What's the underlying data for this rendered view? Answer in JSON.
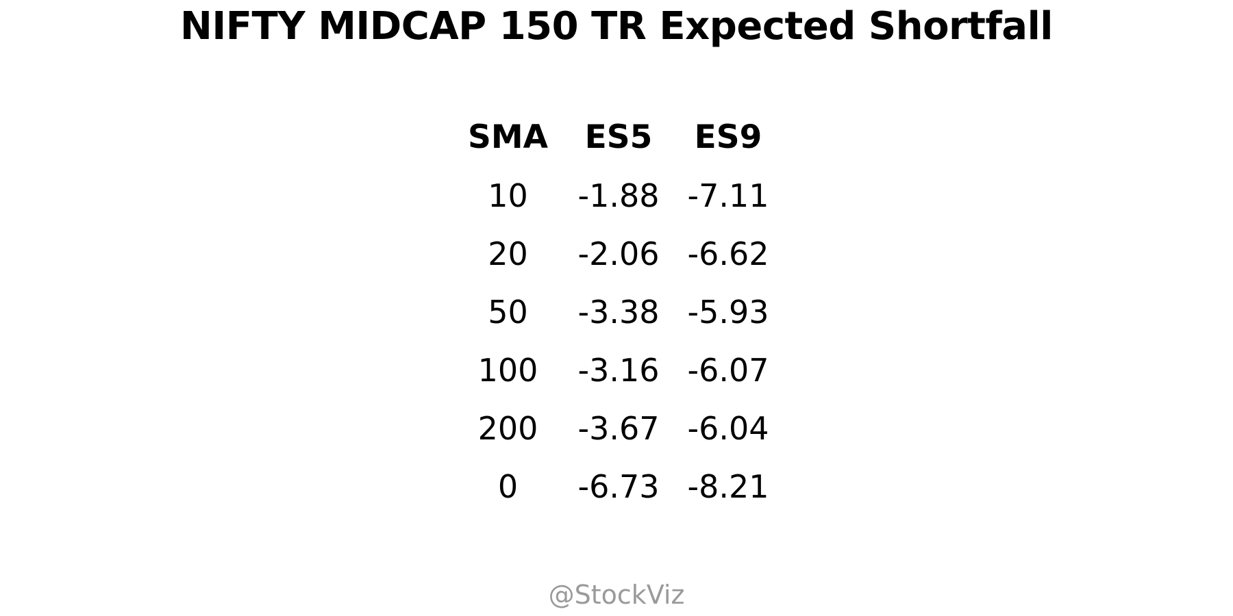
{
  "title": "NIFTY MIDCAP 150 TR Expected Shortfall",
  "watermark": "@StockViz",
  "chart_data": {
    "type": "table",
    "title": "NIFTY MIDCAP 150 TR Expected Shortfall",
    "columns": [
      "SMA",
      "ES5",
      "ES9"
    ],
    "rows": [
      [
        "10",
        "-1.88",
        "-7.11"
      ],
      [
        "20",
        "-2.06",
        "-6.62"
      ],
      [
        "50",
        "-3.38",
        "-5.93"
      ],
      [
        "100",
        "-3.16",
        "-6.07"
      ],
      [
        "200",
        "-3.67",
        "-6.04"
      ],
      [
        "0",
        "-6.73",
        "-8.21"
      ]
    ]
  }
}
